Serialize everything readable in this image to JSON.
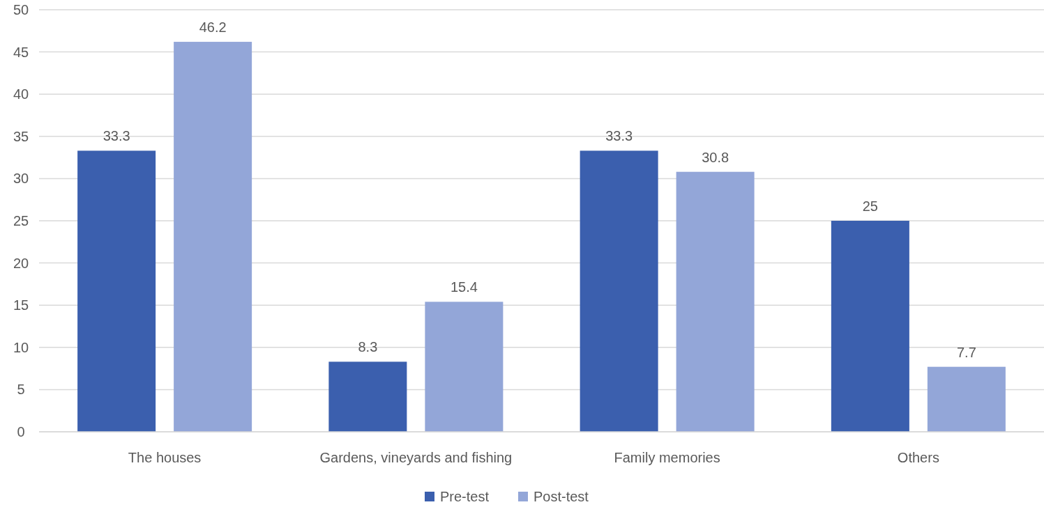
{
  "chart_data": {
    "type": "bar",
    "categories": [
      "The houses",
      "Gardens, vineyards and fishing",
      "Family memories",
      "Others"
    ],
    "series": [
      {
        "name": "Pre-test",
        "color": "#3b5fae",
        "values": [
          33.3,
          8.3,
          33.3,
          25
        ]
      },
      {
        "name": "Post-test",
        "color": "#93a6d8",
        "values": [
          46.2,
          15.4,
          30.8,
          7.7
        ]
      }
    ],
    "ylim": [
      0,
      50
    ],
    "yticks": [
      0,
      5,
      10,
      15,
      20,
      25,
      30,
      35,
      40,
      45,
      50
    ],
    "grid": "y",
    "legend": "bottom",
    "data_labels": true
  }
}
